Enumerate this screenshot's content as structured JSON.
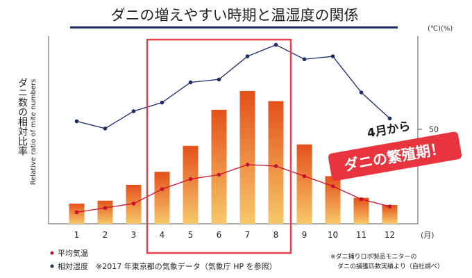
{
  "chart_data": {
    "type": "bar",
    "title": "ダニの増えやすい時期と温湿度の関係",
    "ylabel_ja": "ダニ数の相対比率",
    "ylabel_en": "Relative ratio of mite numbers",
    "right_axis_units": "(℃)(%)",
    "right_axis_tick": "50",
    "x_unit": "(月)",
    "categories": [
      "1",
      "2",
      "3",
      "4",
      "5",
      "6",
      "7",
      "8",
      "9",
      "10",
      "11",
      "12"
    ],
    "series": [
      {
        "name": "ダニ数",
        "type": "bar",
        "values": [
          14,
          16,
          27,
          36,
          54,
          79,
          92,
          85,
          55,
          33,
          18,
          13
        ]
      },
      {
        "name": "平均気温",
        "type": "line",
        "values": [
          8,
          11,
          14,
          24,
          31,
          34,
          41,
          40,
          33,
          26,
          17,
          12
        ]
      },
      {
        "name": "相対湿度",
        "type": "line",
        "values": [
          71,
          66,
          78,
          84,
          98,
          100,
          116,
          124,
          114,
          116,
          91,
          73
        ]
      }
    ],
    "ylim": [
      0,
      130
    ],
    "highlight_months": [
      "4",
      "5",
      "6",
      "7",
      "8"
    ],
    "callout": {
      "line1": "4月から",
      "line2": "ダニの繁殖期！"
    },
    "legend": {
      "placement": "bottom-left",
      "temp_label": "平均気温",
      "humidity_label": "相対湿度",
      "source_note": "※2017 年東京都の気象データ（気象庁 HP を参照）"
    },
    "footnote": {
      "line1": "※ダニ捕りロボ製品モニターの",
      "line2": "ダニの捕獲匹数実績より（自社調べ）"
    },
    "colors": {
      "bar_top": "#e4501a",
      "bar_bottom": "#f7c86a",
      "temp": "#c8102e",
      "humidity": "#1d2b6b",
      "highlight": "#e8434c",
      "callout_bg": "#e8343f",
      "title_underline": "#1d2b6b"
    }
  }
}
